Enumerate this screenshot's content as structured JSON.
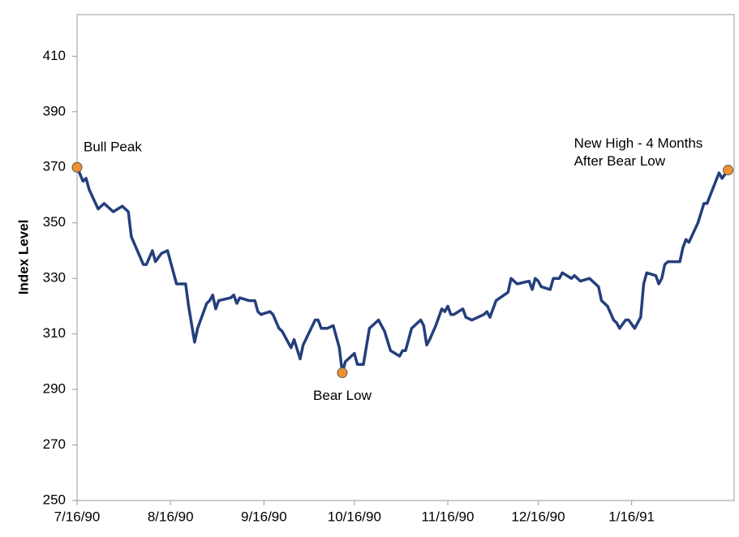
{
  "chart_data": {
    "type": "line",
    "y_label": "Index Level",
    "x": [
      "7/16/90",
      "7/18/90",
      "7/19/90",
      "7/20/90",
      "7/23/90",
      "7/25/90",
      "7/28/90",
      "7/31/90",
      "8/2/90",
      "8/3/90",
      "8/7/90",
      "8/8/90",
      "8/10/90",
      "8/11/90",
      "8/13/90",
      "8/15/90",
      "8/17/90",
      "8/18/90",
      "8/21/90",
      "8/22/90",
      "8/24/90",
      "8/25/90",
      "8/28/90",
      "8/29/90",
      "8/30/90",
      "8/31/90",
      "9/1/90",
      "9/5/90",
      "9/6/90",
      "9/7/90",
      "9/8/90",
      "9/11/90",
      "9/13/90",
      "9/14/90",
      "9/15/90",
      "9/18/90",
      "9/19/90",
      "9/21/90",
      "9/22/90",
      "9/25/90",
      "9/26/90",
      "9/28/90",
      "9/29/90",
      "10/3/90",
      "10/4/90",
      "10/5/90",
      "10/7/90",
      "10/9/90",
      "10/11/90",
      "10/12/90",
      "10/13/90",
      "10/16/90",
      "10/17/90",
      "10/19/90",
      "10/21/90",
      "10/24/90",
      "10/25/90",
      "10/26/90",
      "10/28/90",
      "10/31/90",
      "11/1/90",
      "11/2/90",
      "11/3/90",
      "11/4/90",
      "11/7/90",
      "11/8/90",
      "11/9/90",
      "11/10/90",
      "11/12/90",
      "11/14/90",
      "11/15/90",
      "11/16/90",
      "11/17/90",
      "11/18/90",
      "11/21/90",
      "11/22/90",
      "11/24/90",
      "11/28/90",
      "11/29/90",
      "11/30/90",
      "12/2/90",
      "12/6/90",
      "12/7/90",
      "12/9/90",
      "12/13/90",
      "12/14/90",
      "12/15/90",
      "12/16/90",
      "12/17/90",
      "12/20/90",
      "12/21/90",
      "12/23/90",
      "12/24/90",
      "12/27/90",
      "12/28/90",
      "12/30/90",
      "1/2/91",
      "1/5/91",
      "1/6/91",
      "1/8/91",
      "1/10/91",
      "1/11/91",
      "1/12/91",
      "1/14/91",
      "1/15/91",
      "1/17/91",
      "1/19/91",
      "1/20/91",
      "1/21/91",
      "1/24/91",
      "1/25/91",
      "1/26/91",
      "1/27/91",
      "1/28/91",
      "2/1/91",
      "2/2/91",
      "2/3/91",
      "2/4/91",
      "2/7/91",
      "2/9/91",
      "2/10/91",
      "2/14/91",
      "2/15/91",
      "2/17/91"
    ],
    "series": [
      {
        "name": "Index",
        "color": "#253f7c",
        "values": [
          370,
          365,
          366,
          362,
          355,
          357,
          354,
          356,
          354,
          345,
          335,
          335,
          340,
          336,
          339,
          340,
          332,
          328,
          328,
          320,
          307,
          312,
          321,
          322,
          324,
          319,
          322,
          323,
          324,
          321,
          323,
          322,
          322,
          318,
          317,
          318,
          317,
          312,
          311,
          305,
          308,
          301,
          306,
          315,
          315,
          312,
          312,
          313,
          305,
          296,
          300,
          303,
          299,
          299,
          312,
          315,
          313,
          311,
          304,
          302,
          304,
          304,
          308,
          312,
          315,
          313,
          306,
          308,
          313,
          319,
          318,
          320,
          317,
          317,
          319,
          316,
          315,
          317,
          318,
          316,
          322,
          325,
          330,
          328,
          329,
          326,
          330,
          329,
          327,
          326,
          330,
          330,
          332,
          330,
          331,
          329,
          330,
          327,
          322,
          320,
          315,
          314,
          312,
          315,
          315,
          312,
          316,
          328,
          332,
          331,
          328,
          330,
          335,
          336,
          336,
          341,
          344,
          343,
          350,
          357,
          357,
          368,
          366,
          369
        ]
      }
    ],
    "annotations": [
      {
        "lines": [
          "Bull Peak"
        ],
        "x": "7/16/90",
        "y": 370,
        "color": "#f0922e"
      },
      {
        "lines": [
          "Bear Low"
        ],
        "x": "10/12/90",
        "y": 296,
        "color": "#f0922e"
      },
      {
        "lines": [
          "New High - 4 Months",
          "After Bear Low"
        ],
        "x": "2/17/91",
        "y": 369,
        "color": "#f0922e"
      }
    ],
    "xlim": [
      "7/16/90",
      "2/19/91"
    ],
    "xticks": [
      "7/16/90",
      "8/16/90",
      "9/16/90",
      "10/16/90",
      "11/16/90",
      "12/16/90",
      "1/16/91"
    ],
    "ylim": [
      250,
      425
    ],
    "yticks": [
      250,
      270,
      290,
      310,
      330,
      350,
      370,
      390,
      410
    ]
  }
}
